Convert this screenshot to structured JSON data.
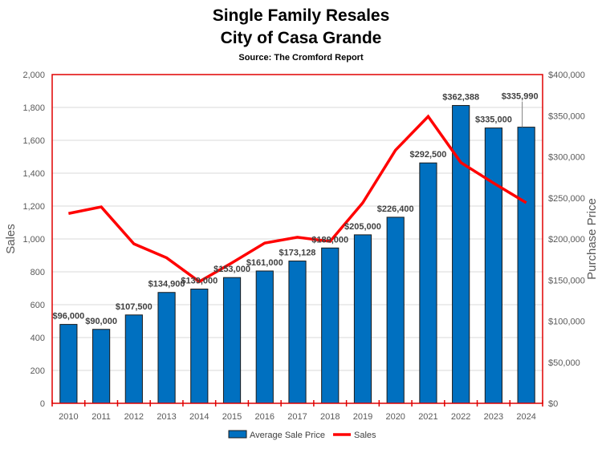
{
  "chart_data": {
    "type": "bar+line",
    "title": "Single Family Resales",
    "subtitle": "City of Casa Grande",
    "source": "Source: The Cromford Report",
    "categories": [
      "2010",
      "2011",
      "2012",
      "2013",
      "2014",
      "2015",
      "2016",
      "2017",
      "2018",
      "2019",
      "2020",
      "2021",
      "2022",
      "2023",
      "2024"
    ],
    "series": [
      {
        "name": "Average Sale Price",
        "type": "bar",
        "axis": "right",
        "color": "#0070C0",
        "values": [
          96000,
          90000,
          107500,
          134900,
          139000,
          153000,
          161000,
          173128,
          189000,
          205000,
          226400,
          292500,
          362388,
          335000,
          335990
        ],
        "labels": [
          "$96,000",
          "$90,000",
          "$107,500",
          "$134,900",
          "$139,000",
          "$153,000",
          "$161,000",
          "$173,128",
          "$189,000",
          "$205,000",
          "$226,400",
          "$292,500",
          "$362,388",
          "$335,000",
          "$335,990"
        ]
      },
      {
        "name": "Sales",
        "type": "line",
        "axis": "left",
        "color": "#FF0000",
        "values": [
          1155,
          1195,
          970,
          885,
          740,
          855,
          975,
          1010,
          985,
          1220,
          1540,
          1745,
          1465,
          1340,
          1220
        ]
      }
    ],
    "ylabel": "Sales",
    "y2label": "Purchase Price",
    "ylim": [
      0,
      2000
    ],
    "y2lim": [
      0,
      400000
    ],
    "yticks": [
      "0",
      "200",
      "400",
      "600",
      "800",
      "1,000",
      "1,200",
      "1,400",
      "1,600",
      "1,800",
      "2,000"
    ],
    "y2ticks": [
      "$0",
      "$50,000",
      "$100,000",
      "$150,000",
      "$200,000",
      "$250,000",
      "$300,000",
      "$350,000",
      "$400,000"
    ],
    "grid": true,
    "legend": "bottom"
  }
}
